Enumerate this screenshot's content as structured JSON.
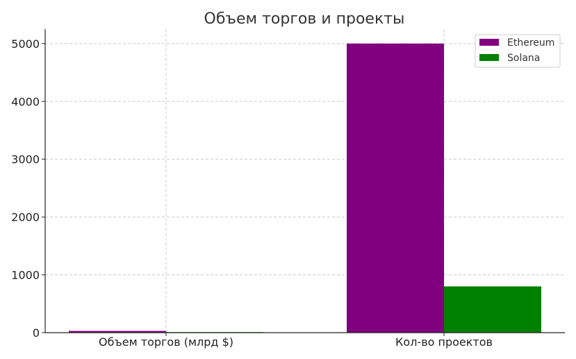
{
  "chart_data": {
    "type": "bar",
    "title": "Объем торгов и проекты",
    "xlabel": "",
    "ylabel": "",
    "categories": [
      "Объем торгов (млрд $)",
      "Кол-во проектов"
    ],
    "series": [
      {
        "name": "Ethereum",
        "values": [
          30,
          5000
        ],
        "color": "#800080"
      },
      {
        "name": "Solana",
        "values": [
          10,
          800
        ],
        "color": "#008000"
      }
    ],
    "ylim": [
      0,
      5250
    ],
    "yticks": [
      "0",
      "1000",
      "2000",
      "3000",
      "4000",
      "5000"
    ],
    "grid": true,
    "legend_position": "top-right"
  }
}
